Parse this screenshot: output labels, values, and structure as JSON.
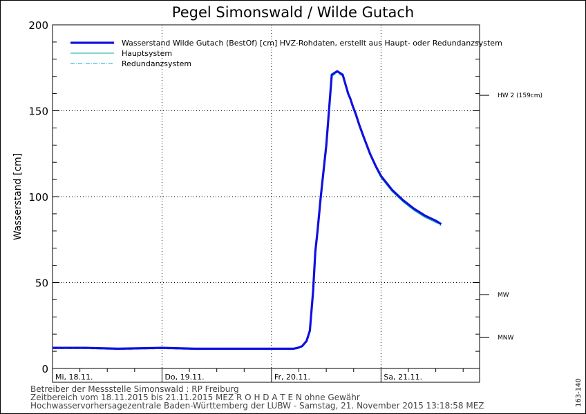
{
  "chart_data": {
    "type": "line",
    "title": "Pegel Simonswald / Wilde Gutach",
    "ylabel": "Wasserstand [cm]",
    "ylim": [
      0,
      200
    ],
    "yticks": [
      0,
      50,
      100,
      150,
      200
    ],
    "x_range_days": [
      0,
      3.9
    ],
    "x_ticks": [
      {
        "t": 0,
        "label": "Mi, 18.11."
      },
      {
        "t": 1,
        "label": "Do, 19.11."
      },
      {
        "t": 2,
        "label": "Fr, 20.11."
      },
      {
        "t": 3,
        "label": "Sa, 21.11."
      }
    ],
    "grid": true,
    "legend_position": "top",
    "series": [
      {
        "name": "Wasserstand Wilde Gutach  (BestOf) [cm] HVZ-Rohdaten, erstellt aus Haupt- oder Redundanzsystem",
        "color": "#1010e0",
        "style": "thick",
        "x": [
          0,
          0.3,
          0.6,
          1.0,
          1.3,
          1.7,
          2.1,
          2.2,
          2.24,
          2.28,
          2.32,
          2.35,
          2.38,
          2.4,
          2.42,
          2.45,
          2.5,
          2.55,
          2.6,
          2.65,
          2.7,
          2.72,
          2.74,
          2.77,
          2.8,
          2.84,
          2.9,
          2.95,
          3.0,
          3.1,
          3.2,
          3.3,
          3.4,
          3.5,
          3.55
        ],
        "y": [
          12,
          12,
          11.5,
          12,
          11.5,
          11.5,
          11.5,
          11.5,
          12,
          13,
          16,
          22,
          45,
          68,
          80,
          100,
          130,
          171,
          173,
          171,
          160,
          157,
          153,
          148,
          142,
          135,
          125,
          118,
          112,
          104,
          98,
          93,
          89,
          86,
          84
        ]
      },
      {
        "name": "Hauptsystem",
        "color": "#00b0a0",
        "style": "solid",
        "x": [
          0,
          0.3,
          0.6,
          1.0,
          1.3,
          1.7,
          2.1,
          2.2,
          2.24,
          2.28,
          2.32,
          2.35,
          2.38,
          2.4,
          2.42,
          2.45,
          2.5,
          2.55,
          2.6,
          2.65,
          2.7,
          2.72,
          2.74,
          2.77,
          2.8,
          2.84,
          2.9,
          2.95,
          3.0,
          3.1,
          3.2,
          3.3,
          3.4,
          3.5,
          3.55
        ],
        "y": [
          12,
          12,
          11.5,
          12,
          11.5,
          11.5,
          11.5,
          11.5,
          12,
          13,
          16,
          22,
          45,
          68,
          80,
          100,
          130,
          171,
          173,
          171,
          160,
          157,
          153,
          148,
          142,
          135,
          124,
          117,
          111,
          103,
          97,
          92,
          88,
          85,
          84
        ]
      },
      {
        "name": "Redundanzsystem",
        "color": "#00b0d0",
        "style": "dashdot",
        "x": [
          0,
          0.3,
          0.6,
          1.0,
          1.3,
          1.7,
          2.1,
          2.2,
          2.24,
          2.28,
          2.32,
          2.35,
          2.38,
          2.4,
          2.42,
          2.45,
          2.5,
          2.55,
          2.6,
          2.65,
          2.7,
          2.72,
          2.74,
          2.77,
          2.8,
          2.84,
          2.9,
          2.95,
          3.0,
          3.1,
          3.2,
          3.3,
          3.4,
          3.5,
          3.55
        ],
        "y": [
          11.5,
          11.5,
          11,
          11.5,
          11,
          11,
          11,
          11,
          11.5,
          12.5,
          15.5,
          21,
          44,
          67,
          79,
          99,
          129,
          170,
          172,
          170,
          159,
          156,
          152,
          147,
          141,
          134,
          124,
          117,
          111,
          103,
          97,
          92,
          88,
          85,
          83
        ]
      }
    ],
    "reference_levels": [
      {
        "label": "HW 2 (159cm)",
        "value": 159
      },
      {
        "label": "MW",
        "value": 43
      },
      {
        "label": "MNW",
        "value": 18
      }
    ]
  },
  "footer": {
    "line1": "Betreiber der Messstelle Simonswald : RP Freiburg",
    "line2": "Zeitbereich vom 18.11.2015 bis 21.11.2015    MEZ    R O H D A T E N ohne Gewähr",
    "line3": "Hochwasservorhersagezentrale Baden-Württemberg der LUBW - Samstag, 21. November 2015 13:18:58 MEZ"
  },
  "side_id": "163-140"
}
